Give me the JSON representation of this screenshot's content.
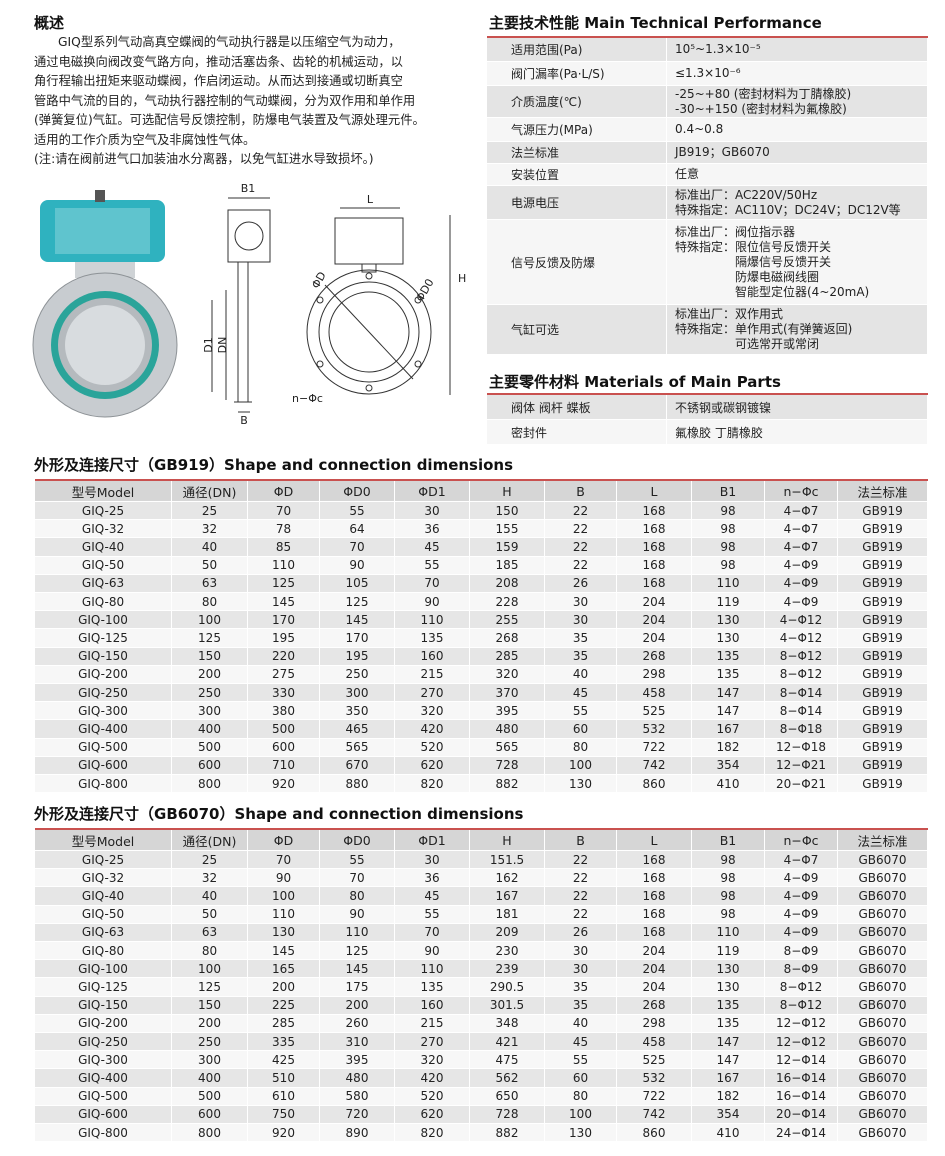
{
  "overview": {
    "title": "概述",
    "lines": [
      "GIQ型系列气动高真空蝶阀的气动执行器是以压缩空气为动力，",
      "通过电磁换向阀改变气路方向，推动活塞齿条、齿轮的机械运动，以",
      "角行程输出扭矩来驱动蝶阀，作启闭运动。从而达到接通或切断真空",
      "管路中气流的目的，气动执行器控制的气动蝶阀，分为双作用和单作用",
      "(弹簧复位)气缸。可选配信号反馈控制，防爆电气装置及气源处理元件。",
      "适用的工作介质为空气及非腐蚀性气体。",
      "(注:请在阀前进气口加装油水分离器，以免气缸进水导致损坏。)"
    ]
  },
  "drawing": {
    "labels": [
      "B1",
      "D1",
      "DN",
      "B",
      "L",
      "ΦD",
      "ΦD0",
      "H",
      "n−Φc"
    ]
  },
  "tech": {
    "title": "主要技术性能 Main Technical Performance",
    "rows": [
      [
        "适用范围(Pa)",
        [
          "10⁵~1.3×10⁻⁵"
        ]
      ],
      [
        "阀门漏率(Pa·L/S)",
        [
          "≤1.3×10⁻⁶"
        ]
      ],
      [
        "介质温度(℃)",
        [
          "-25~+80 (密封材料为丁腈橡胶)",
          "-30~+150 (密封材料为氟橡胶)"
        ]
      ],
      [
        "气源压力(MPa)",
        [
          "0.4~0.8"
        ]
      ],
      [
        "法兰标准",
        [
          "JB919；GB6070"
        ]
      ],
      [
        "安装位置",
        [
          "任意"
        ]
      ],
      [
        "电源电压",
        [
          "标准出厂：AC220V/50Hz",
          "特殊指定：AC110V；DC24V；DC12V等"
        ]
      ],
      [
        "信号反馈及防爆",
        [
          "标准出厂：阀位指示器",
          "特殊指定：限位信号反馈开关",
          "隔爆信号反馈开关",
          "防爆电磁阀线圈",
          "智能型定位器(4~20mA)"
        ]
      ],
      [
        "气缸可选",
        [
          "标准出厂：双作用式",
          "特殊指定：单作用式(有弹簧返回)",
          "可选常开或常闭"
        ]
      ]
    ]
  },
  "materials": {
    "title": "主要零件材料 Materials of Main Parts",
    "rows": [
      [
        "阀体 阀杆 蝶板",
        "不锈钢或碳钢镀镍"
      ],
      [
        "密封件",
        "氟橡胶 丁腈橡胶"
      ]
    ]
  },
  "tables": [
    {
      "title": "外形及连接尺寸（GB919）Shape and connection dimensions",
      "header": [
        "型号Model",
        "通径(DN)",
        "ΦD",
        "ΦD0",
        "ΦD1",
        "H",
        "B",
        "L",
        "B1",
        "n−Φc",
        "法兰标准"
      ],
      "rows": [
        [
          "GIQ-25",
          "25",
          "70",
          "55",
          "30",
          "150",
          "22",
          "168",
          "98",
          "4−Φ7",
          "GB919"
        ],
        [
          "GIQ-32",
          "32",
          "78",
          "64",
          "36",
          "155",
          "22",
          "168",
          "98",
          "4−Φ7",
          "GB919"
        ],
        [
          "GIQ-40",
          "40",
          "85",
          "70",
          "45",
          "159",
          "22",
          "168",
          "98",
          "4−Φ7",
          "GB919"
        ],
        [
          "GIQ-50",
          "50",
          "110",
          "90",
          "55",
          "185",
          "22",
          "168",
          "98",
          "4−Φ9",
          "GB919"
        ],
        [
          "GIQ-63",
          "63",
          "125",
          "105",
          "70",
          "208",
          "26",
          "168",
          "110",
          "4−Φ9",
          "GB919"
        ],
        [
          "GIQ-80",
          "80",
          "145",
          "125",
          "90",
          "228",
          "30",
          "204",
          "119",
          "4−Φ9",
          "GB919"
        ],
        [
          "GIQ-100",
          "100",
          "170",
          "145",
          "110",
          "255",
          "30",
          "204",
          "130",
          "4−Φ12",
          "GB919"
        ],
        [
          "GIQ-125",
          "125",
          "195",
          "170",
          "135",
          "268",
          "35",
          "204",
          "130",
          "4−Φ12",
          "GB919"
        ],
        [
          "GIQ-150",
          "150",
          "220",
          "195",
          "160",
          "285",
          "35",
          "268",
          "135",
          "8−Φ12",
          "GB919"
        ],
        [
          "GIQ-200",
          "200",
          "275",
          "250",
          "215",
          "320",
          "40",
          "298",
          "135",
          "8−Φ12",
          "GB919"
        ],
        [
          "GIQ-250",
          "250",
          "330",
          "300",
          "270",
          "370",
          "45",
          "458",
          "147",
          "8−Φ14",
          "GB919"
        ],
        [
          "GIQ-300",
          "300",
          "380",
          "350",
          "320",
          "395",
          "55",
          "525",
          "147",
          "8−Φ14",
          "GB919"
        ],
        [
          "GIQ-400",
          "400",
          "500",
          "465",
          "420",
          "480",
          "60",
          "532",
          "167",
          "8−Φ18",
          "GB919"
        ],
        [
          "GIQ-500",
          "500",
          "600",
          "565",
          "520",
          "565",
          "80",
          "722",
          "182",
          "12−Φ18",
          "GB919"
        ],
        [
          "GIQ-600",
          "600",
          "710",
          "670",
          "620",
          "728",
          "100",
          "742",
          "354",
          "12−Φ21",
          "GB919"
        ],
        [
          "GIQ-800",
          "800",
          "920",
          "880",
          "820",
          "882",
          "130",
          "860",
          "410",
          "20−Φ21",
          "GB919"
        ]
      ]
    },
    {
      "title": "外形及连接尺寸（GB6070）Shape and connection dimensions",
      "header": [
        "型号Model",
        "通径(DN)",
        "ΦD",
        "ΦD0",
        "ΦD1",
        "H",
        "B",
        "L",
        "B1",
        "n−Φc",
        "法兰标准"
      ],
      "rows": [
        [
          "GIQ-25",
          "25",
          "70",
          "55",
          "30",
          "151.5",
          "22",
          "168",
          "98",
          "4−Φ7",
          "GB6070"
        ],
        [
          "GIQ-32",
          "32",
          "90",
          "70",
          "36",
          "162",
          "22",
          "168",
          "98",
          "4−Φ9",
          "GB6070"
        ],
        [
          "GIQ-40",
          "40",
          "100",
          "80",
          "45",
          "167",
          "22",
          "168",
          "98",
          "4−Φ9",
          "GB6070"
        ],
        [
          "GIQ-50",
          "50",
          "110",
          "90",
          "55",
          "181",
          "22",
          "168",
          "98",
          "4−Φ9",
          "GB6070"
        ],
        [
          "GIQ-63",
          "63",
          "130",
          "110",
          "70",
          "209",
          "26",
          "168",
          "110",
          "4−Φ9",
          "GB6070"
        ],
        [
          "GIQ-80",
          "80",
          "145",
          "125",
          "90",
          "230",
          "30",
          "204",
          "119",
          "8−Φ9",
          "GB6070"
        ],
        [
          "GIQ-100",
          "100",
          "165",
          "145",
          "110",
          "239",
          "30",
          "204",
          "130",
          "8−Φ9",
          "GB6070"
        ],
        [
          "GIQ-125",
          "125",
          "200",
          "175",
          "135",
          "290.5",
          "35",
          "204",
          "130",
          "8−Φ12",
          "GB6070"
        ],
        [
          "GIQ-150",
          "150",
          "225",
          "200",
          "160",
          "301.5",
          "35",
          "268",
          "135",
          "8−Φ12",
          "GB6070"
        ],
        [
          "GIQ-200",
          "200",
          "285",
          "260",
          "215",
          "348",
          "40",
          "298",
          "135",
          "12−Φ12",
          "GB6070"
        ],
        [
          "GIQ-250",
          "250",
          "335",
          "310",
          "270",
          "421",
          "45",
          "458",
          "147",
          "12−Φ12",
          "GB6070"
        ],
        [
          "GIQ-300",
          "300",
          "425",
          "395",
          "320",
          "475",
          "55",
          "525",
          "147",
          "12−Φ14",
          "GB6070"
        ],
        [
          "GIQ-400",
          "400",
          "510",
          "480",
          "420",
          "562",
          "60",
          "532",
          "167",
          "16−Φ14",
          "GB6070"
        ],
        [
          "GIQ-500",
          "500",
          "610",
          "580",
          "520",
          "650",
          "80",
          "722",
          "182",
          "16−Φ14",
          "GB6070"
        ],
        [
          "GIQ-600",
          "600",
          "750",
          "720",
          "620",
          "728",
          "100",
          "742",
          "354",
          "20−Φ14",
          "GB6070"
        ],
        [
          "GIQ-800",
          "800",
          "920",
          "890",
          "820",
          "882",
          "130",
          "860",
          "410",
          "24−Φ14",
          "GB6070"
        ]
      ]
    }
  ]
}
